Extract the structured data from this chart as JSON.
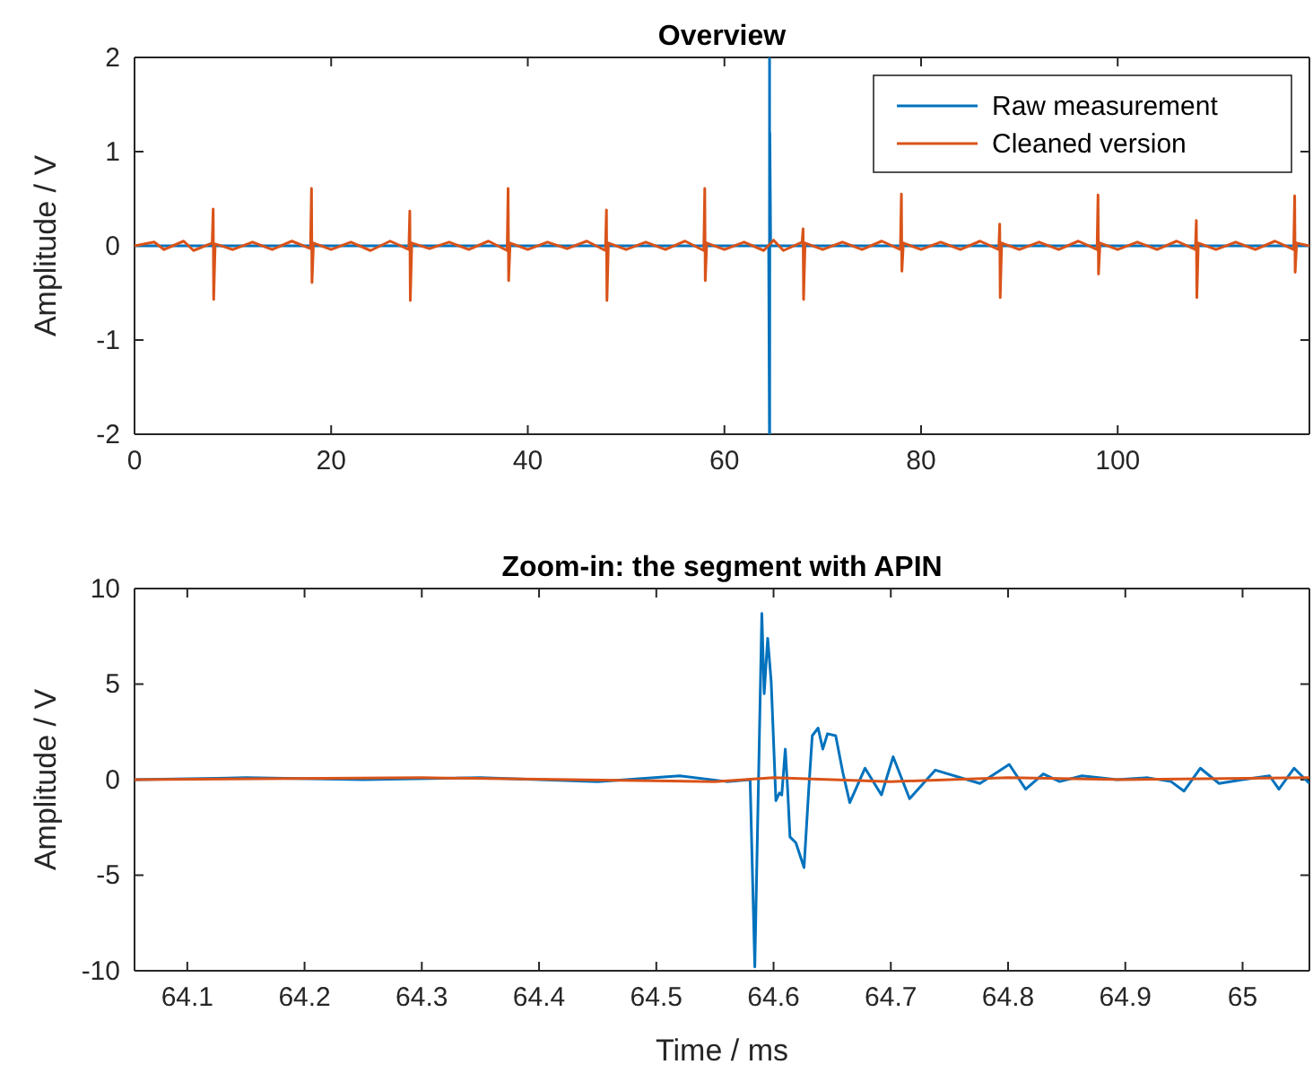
{
  "chart_data": [
    {
      "type": "line",
      "title": "Overview",
      "ylabel": "Amplitude / V",
      "xlim": [
        0,
        119.5
      ],
      "xticks": [
        0,
        20,
        40,
        60,
        80,
        100
      ],
      "ylim": [
        -2,
        2
      ],
      "yticks": [
        -2,
        -1,
        0,
        1,
        2
      ],
      "legend": "top right",
      "grid": false,
      "series": [
        {
          "name": "Raw measurement",
          "color": "#0072bd",
          "x": [
            0,
            64.5,
            64.58,
            64.59,
            64.6,
            64.62,
            64.7,
            119.5
          ],
          "values": [
            0,
            0,
            -2,
            2,
            -2,
            1.2,
            0,
            0
          ]
        },
        {
          "name": "Cleaned version",
          "color": "#d95319",
          "x": [
            0,
            2,
            3,
            5,
            6,
            7.9,
            8,
            8.05,
            8.2,
            10,
            12,
            14,
            16,
            17.9,
            18,
            18.05,
            18.2,
            20,
            22,
            24,
            26,
            27.9,
            28,
            28.05,
            28.2,
            30,
            32,
            34,
            36,
            37.9,
            38,
            38.05,
            38.2,
            40,
            42,
            44,
            46,
            47.9,
            48,
            48.05,
            48.2,
            50,
            52,
            54,
            56,
            57.9,
            58,
            58.05,
            58.2,
            60,
            62,
            64,
            65,
            66,
            67.9,
            68,
            68.05,
            68.2,
            70,
            72,
            74,
            76,
            77.9,
            78,
            78.05,
            78.2,
            80,
            82,
            84,
            86,
            87.9,
            88,
            88.05,
            88.2,
            90,
            92,
            94,
            96,
            97.9,
            98,
            98.05,
            98.2,
            100,
            102,
            104,
            106,
            107.9,
            108,
            108.05,
            108.2,
            110,
            112,
            114,
            116,
            117.9,
            118,
            118.05,
            118.2,
            119.5
          ],
          "values": [
            0,
            0.04,
            -0.04,
            0.05,
            -0.05,
            0.03,
            0.39,
            -0.57,
            0.02,
            -0.04,
            0.04,
            -0.04,
            0.05,
            -0.03,
            0.61,
            -0.39,
            0.03,
            -0.04,
            0.04,
            -0.05,
            0.05,
            -0.04,
            0.37,
            -0.58,
            0.03,
            -0.03,
            0.04,
            -0.04,
            0.05,
            -0.05,
            0.61,
            -0.37,
            0.03,
            -0.04,
            0.04,
            -0.03,
            0.05,
            -0.05,
            0.38,
            -0.58,
            0.03,
            -0.04,
            0.04,
            -0.04,
            0.05,
            -0.05,
            0.61,
            -0.37,
            0.03,
            -0.04,
            0.04,
            -0.05,
            0.06,
            -0.05,
            0.04,
            0.18,
            -0.57,
            0.03,
            -0.04,
            0.04,
            -0.04,
            0.05,
            -0.04,
            0.55,
            -0.27,
            0.03,
            -0.04,
            0.04,
            -0.04,
            0.05,
            -0.04,
            0.23,
            -0.55,
            0.03,
            -0.04,
            0.04,
            -0.04,
            0.05,
            -0.04,
            0.54,
            -0.3,
            0.03,
            -0.04,
            0.04,
            -0.04,
            0.05,
            -0.04,
            0.27,
            -0.55,
            0.03,
            -0.04,
            0.04,
            -0.04,
            0.05,
            -0.04,
            0.53,
            -0.28,
            0.03,
            0
          ]
        }
      ]
    },
    {
      "type": "line",
      "title": "Zoom-in: the segment with APIN",
      "xlabel": "Time / ms",
      "ylabel": "Amplitude / V",
      "xlim": [
        64.055,
        65.057
      ],
      "xticks": [
        64.1,
        64.2,
        64.3,
        64.4,
        64.5,
        64.6,
        64.7,
        64.8,
        64.9,
        65
      ],
      "ylim": [
        -10,
        10
      ],
      "yticks": [
        -10,
        -5,
        0,
        5,
        10
      ],
      "legend": false,
      "grid": false,
      "series": [
        {
          "color": "#0072bd",
          "x": [
            64.055,
            64.15,
            64.25,
            64.35,
            64.45,
            64.52,
            64.56,
            64.58,
            64.584,
            64.59,
            64.592,
            64.595,
            64.598,
            64.602,
            64.605,
            64.607,
            64.61,
            64.612,
            64.614,
            64.619,
            64.626,
            64.63,
            64.633,
            64.638,
            64.642,
            64.646,
            64.653,
            64.659,
            64.665,
            64.678,
            64.692,
            64.702,
            64.716,
            64.738,
            64.776,
            64.801,
            64.815,
            64.83,
            64.844,
            64.863,
            64.893,
            64.919,
            64.939,
            64.95,
            64.964,
            64.98,
            65,
            65.023,
            65.031,
            65.044,
            65.057
          ],
          "values": [
            0,
            0.1,
            0,
            0.1,
            -0.1,
            0.2,
            -0.1,
            0,
            -9.8,
            8.7,
            4.5,
            7.4,
            5.1,
            -1.1,
            -0.7,
            -0.8,
            1.6,
            -0.5,
            -3,
            -3.3,
            -4.6,
            -0.5,
            2.3,
            2.7,
            1.6,
            2.4,
            2.3,
            0.4,
            -1.2,
            0.6,
            -0.8,
            1.2,
            -1,
            0.5,
            -0.2,
            0.8,
            -0.5,
            0.3,
            -0.1,
            0.2,
            0,
            0.1,
            -0.1,
            -0.6,
            0.6,
            -0.2,
            0,
            0.2,
            -0.5,
            0.6,
            -0.2
          ]
        },
        {
          "color": "#d95319",
          "x": [
            64.055,
            64.3,
            64.55,
            64.6,
            64.7,
            64.8,
            64.9,
            65.057
          ],
          "values": [
            0,
            0.1,
            -0.1,
            0.1,
            -0.1,
            0.1,
            0,
            0.1
          ]
        }
      ]
    }
  ]
}
